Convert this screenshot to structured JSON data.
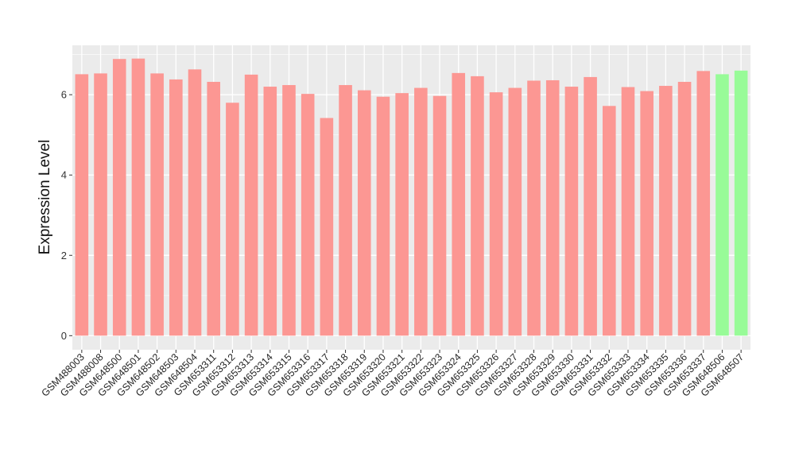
{
  "chart_data": {
    "type": "bar",
    "title": "",
    "xlabel": "",
    "ylabel": "Expression Level",
    "categories": [
      "GSM488003",
      "GSM488008",
      "GSM648500",
      "GSM648501",
      "GSM648502",
      "GSM648503",
      "GSM648504",
      "GSM653311",
      "GSM653312",
      "GSM653313",
      "GSM653314",
      "GSM653315",
      "GSM653316",
      "GSM653317",
      "GSM653318",
      "GSM653319",
      "GSM653320",
      "GSM653321",
      "GSM653322",
      "GSM653323",
      "GSM653324",
      "GSM653325",
      "GSM653326",
      "GSM653327",
      "GSM653328",
      "GSM653329",
      "GSM653330",
      "GSM653331",
      "GSM653332",
      "GSM653333",
      "GSM653334",
      "GSM653335",
      "GSM653336",
      "GSM653337",
      "GSM648506",
      "GSM648507"
    ],
    "values": [
      6.51,
      6.53,
      6.89,
      6.9,
      6.53,
      6.38,
      6.63,
      6.32,
      5.8,
      6.5,
      6.2,
      6.24,
      6.02,
      5.42,
      6.24,
      6.11,
      5.95,
      6.04,
      6.17,
      5.97,
      6.54,
      6.46,
      6.06,
      6.17,
      6.35,
      6.36,
      6.2,
      6.44,
      5.72,
      6.19,
      6.09,
      6.22,
      6.32,
      6.59,
      6.51,
      6.6
    ],
    "highlighted_categories": [
      "GSM648506",
      "GSM648507"
    ],
    "bar_color_default": "#FC9793",
    "bar_color_highlight": "#98FB98",
    "y_ticks": [
      0,
      2,
      4,
      6
    ],
    "y_minor_ticks": [
      1,
      3,
      5,
      7
    ],
    "ylim": [
      -0.35,
      7.23
    ],
    "grid": "on",
    "legend": "none",
    "panel_background": "#EBEBEB",
    "grid_color": "#FFFFFF",
    "tick_color": "#333333"
  }
}
